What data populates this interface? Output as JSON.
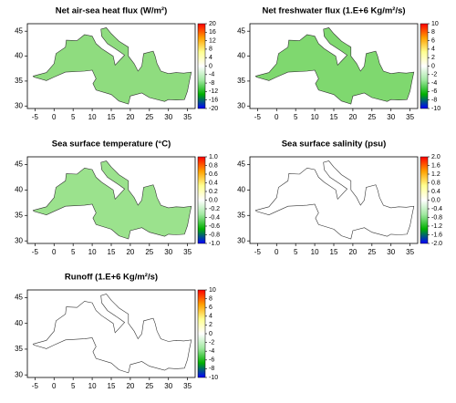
{
  "chart_data": [
    {
      "type": "map",
      "title": "Net air-sea heat flux (W/m²)",
      "xlim": [
        -7,
        37
      ],
      "ylim": [
        29.5,
        46.5
      ],
      "xticks": [
        -5,
        0,
        5,
        10,
        15,
        20,
        25,
        30,
        35
      ],
      "yticks": [
        30,
        35,
        40,
        45
      ],
      "clim": [
        -20,
        20
      ],
      "cticks": [
        -20,
        -16,
        -12,
        -8,
        -4,
        0,
        4,
        8,
        12,
        16,
        20
      ],
      "colormap": [
        "#0000ff",
        "#00b000",
        "#a0e8a0",
        "#ffffff",
        "#ffff90",
        "#ffa000",
        "#ff0000"
      ],
      "map_fill": "#8fdc7f"
    },
    {
      "type": "map",
      "title": "Net freshwater flux (1.E+6 Kg/m²/s)",
      "xlim": [
        -7,
        37
      ],
      "ylim": [
        29.5,
        46.5
      ],
      "xticks": [
        -5,
        0,
        5,
        10,
        15,
        20,
        25,
        30,
        35
      ],
      "yticks": [
        30,
        35,
        40,
        45
      ],
      "clim": [
        -10,
        10
      ],
      "cticks": [
        -10,
        -8,
        -6,
        -4,
        -2,
        0,
        2,
        4,
        6,
        8,
        10
      ],
      "colormap": [
        "#0000ff",
        "#00b000",
        "#a0e8a0",
        "#ffffff",
        "#ffff90",
        "#ffa000",
        "#ff0000"
      ],
      "map_fill": "#7fd86f"
    },
    {
      "type": "map",
      "title": "Sea surface temperature (°C)",
      "xlim": [
        -7,
        37
      ],
      "ylim": [
        29.5,
        46.5
      ],
      "xticks": [
        -5,
        0,
        5,
        10,
        15,
        20,
        25,
        30,
        35
      ],
      "yticks": [
        30,
        35,
        40,
        45
      ],
      "clim": [
        -1,
        1
      ],
      "cticks": [
        {
          "value": -1,
          "label": "-1.0"
        },
        -0.8,
        -0.6,
        -0.4,
        -0.2,
        {
          "value": 0,
          "label": "0.0"
        },
        0.2,
        0.4,
        0.6,
        0.8,
        {
          "value": 1,
          "label": "1.0"
        }
      ],
      "colormap": [
        "#0000ff",
        "#00b000",
        "#a0e8a0",
        "#ffffff",
        "#ffff90",
        "#ffa000",
        "#ff0000"
      ],
      "map_fill": "#9be28d"
    },
    {
      "type": "map",
      "title": "Sea surface salinity (psu)",
      "xlim": [
        -7,
        37
      ],
      "ylim": [
        29.5,
        46.5
      ],
      "xticks": [
        -5,
        0,
        5,
        10,
        15,
        20,
        25,
        30,
        35
      ],
      "yticks": [
        30,
        35,
        40,
        45
      ],
      "clim": [
        -2,
        2
      ],
      "cticks": [
        {
          "value": -2,
          "label": "-2.0"
        },
        -1.6,
        -1.2,
        -0.8,
        -0.4,
        {
          "value": 0,
          "label": "0.0"
        },
        0.4,
        0.8,
        1.2,
        1.6,
        {
          "value": 2,
          "label": "2.0"
        }
      ],
      "colormap": [
        "#0000ff",
        "#00b000",
        "#a0e8a0",
        "#ffffff",
        "#ffff90",
        "#ffa000",
        "#ff0000"
      ],
      "map_fill": "#ffffff"
    },
    {
      "type": "map",
      "title": "Runoff (1.E+6 Kg/m²/s)",
      "xlim": [
        -7,
        37
      ],
      "ylim": [
        29.5,
        46.5
      ],
      "xticks": [
        -5,
        0,
        5,
        10,
        15,
        20,
        25,
        30,
        35
      ],
      "yticks": [
        30,
        35,
        40,
        45
      ],
      "clim": [
        -10,
        10
      ],
      "cticks": [
        -10,
        -8,
        -6,
        -4,
        -2,
        0,
        2,
        4,
        6,
        8,
        10
      ],
      "colormap": [
        "#0000ff",
        "#00b000",
        "#a0e8a0",
        "#ffffff",
        "#ffff90",
        "#ffa000",
        "#ff0000"
      ],
      "map_fill": "#ffffff"
    }
  ]
}
